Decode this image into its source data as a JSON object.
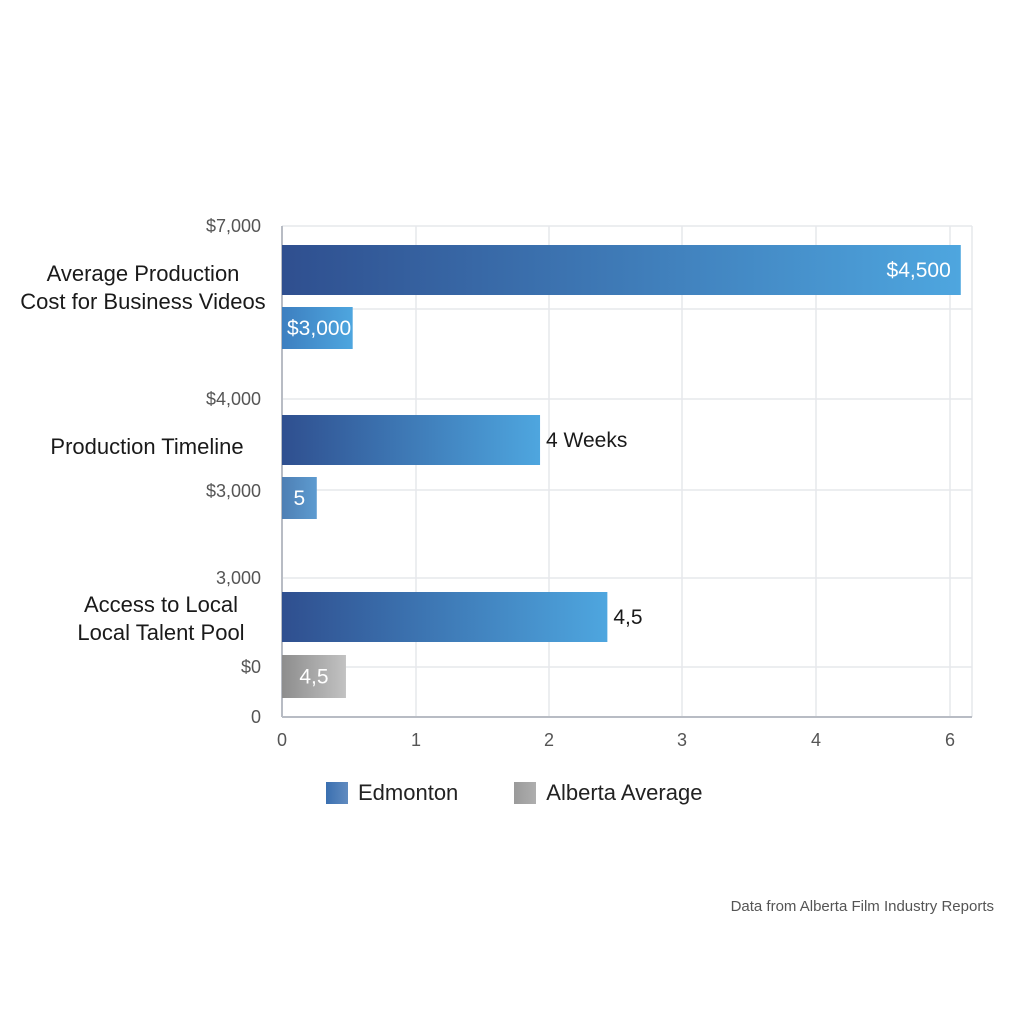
{
  "chart_data": {
    "type": "bar",
    "orientation": "horizontal",
    "categories": [
      [
        "Average Production",
        "Cost for Business Videos"
      ],
      [
        "Production Timeline"
      ],
      [
        "Access to Local",
        "Local Talent Pool"
      ]
    ],
    "series": [
      {
        "name": "Edmonton",
        "values": [
          6.05,
          2.3,
          2.9
        ],
        "labels": [
          "$4,500",
          "4 Weeks",
          "4,5"
        ]
      },
      {
        "name": "Alberta Average",
        "values": [
          0.63,
          0.31,
          0.57
        ],
        "labels": [
          "$3,000",
          "5",
          "4,5"
        ]
      }
    ],
    "bar_colors": [
      [
        "#2f4f8f",
        "#4ea6df"
      ],
      [
        "#2f4f8f",
        "#4ea6df"
      ],
      [
        "#2f4f8f",
        "#4ea6df"
      ],
      [
        "#3d7fc0",
        "#4ea6df"
      ],
      [
        "#4e7fb4",
        "#5d9bd0"
      ],
      [
        "#8d8d8d",
        "#c2c2c2"
      ]
    ],
    "y_tick_labels": [
      "$7,000",
      "$4,000",
      "$3,000",
      "3,000",
      "$0",
      "0"
    ],
    "x_ticks": [
      0,
      1,
      2,
      3,
      4,
      6
    ],
    "xlim": [
      0,
      6.15
    ],
    "grid": true,
    "legend_position": "bottom",
    "colors": {
      "edmonton_legend": "#3a6fb0",
      "alberta_legend": "#9a9a9a",
      "grid": "#e6e8ec",
      "axis": "#b8bcc4"
    }
  },
  "legend": {
    "items": [
      {
        "label": "Edmonton",
        "color": "#3a6fb0"
      },
      {
        "label": "Alberta Average",
        "color": "#9a9a9a"
      }
    ]
  },
  "footer": {
    "source": "Data from Alberta Film Industry Reports"
  }
}
